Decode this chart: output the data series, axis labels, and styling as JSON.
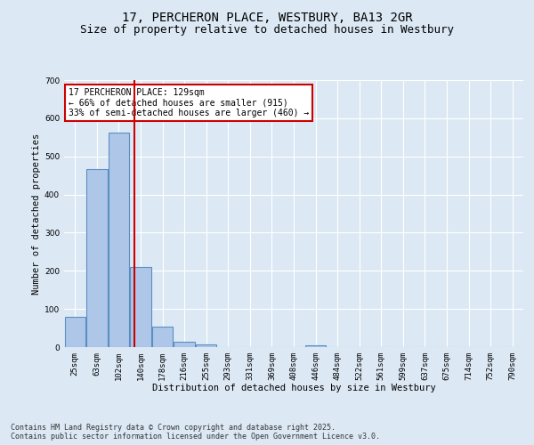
{
  "title_line1": "17, PERCHERON PLACE, WESTBURY, BA13 2GR",
  "title_line2": "Size of property relative to detached houses in Westbury",
  "xlabel": "Distribution of detached houses by size in Westbury",
  "ylabel": "Number of detached properties",
  "categories": [
    "25sqm",
    "63sqm",
    "102sqm",
    "140sqm",
    "178sqm",
    "216sqm",
    "255sqm",
    "293sqm",
    "331sqm",
    "369sqm",
    "408sqm",
    "446sqm",
    "484sqm",
    "522sqm",
    "561sqm",
    "599sqm",
    "637sqm",
    "675sqm",
    "714sqm",
    "752sqm",
    "790sqm"
  ],
  "values": [
    80,
    467,
    562,
    210,
    53,
    15,
    8,
    1,
    0,
    0,
    0,
    5,
    0,
    0,
    0,
    0,
    0,
    0,
    0,
    0,
    0
  ],
  "bar_color": "#aec6e8",
  "bar_edgecolor": "#5a8fc4",
  "bar_linewidth": 0.8,
  "vline_color": "#cc0000",
  "annotation_text": "17 PERCHERON PLACE: 129sqm\n← 66% of detached houses are smaller (915)\n33% of semi-detached houses are larger (460) →",
  "annotation_box_color": "#ffffff",
  "annotation_border_color": "#cc0000",
  "ylim": [
    0,
    700
  ],
  "yticks": [
    0,
    100,
    200,
    300,
    400,
    500,
    600,
    700
  ],
  "bg_color": "#dce9f5",
  "plot_bg_color": "#dce9f5",
  "grid_color": "#ffffff",
  "footnote": "Contains HM Land Registry data © Crown copyright and database right 2025.\nContains public sector information licensed under the Open Government Licence v3.0.",
  "title_fontsize": 10,
  "subtitle_fontsize": 9,
  "label_fontsize": 7.5,
  "tick_fontsize": 6.5,
  "annot_fontsize": 7,
  "footnote_fontsize": 6
}
